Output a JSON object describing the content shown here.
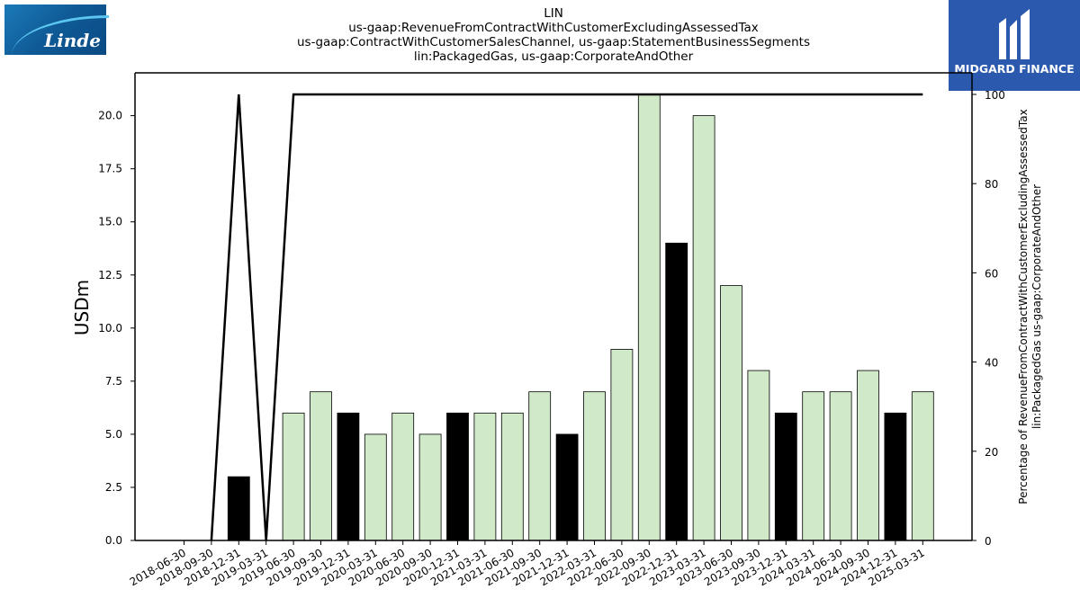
{
  "branding": {
    "left_logo_text": "Linde",
    "right_logo_text": "MIDGARD FINANCE"
  },
  "title_lines": [
    "LIN",
    "us-gaap:RevenueFromContractWithCustomerExcludingAssessedTax",
    "us-gaap:ContractWithCustomerSalesChannel, us-gaap:StatementBusinessSegments",
    "lin:PackagedGas, us-gaap:CorporateAndOther"
  ],
  "chart_data": {
    "type": "bar",
    "categories": [
      "2018-06-30",
      "2018-09-30",
      "2018-12-31",
      "2019-03-31",
      "2019-06-30",
      "2019-09-30",
      "2019-12-31",
      "2020-03-31",
      "2020-06-30",
      "2020-09-30",
      "2020-12-31",
      "2021-03-31",
      "2021-06-30",
      "2021-09-30",
      "2021-12-31",
      "2022-03-31",
      "2022-06-30",
      "2022-09-30",
      "2022-12-31",
      "2023-03-31",
      "2023-06-30",
      "2023-09-30",
      "2023-12-31",
      "2024-03-31",
      "2024-06-30",
      "2024-09-30",
      "2024-12-31",
      "2025-03-31"
    ],
    "values": [
      0,
      0,
      3,
      0,
      6,
      7,
      6,
      5,
      6,
      5,
      6,
      6,
      6,
      7,
      5,
      7,
      9,
      21,
      14,
      20,
      12,
      8,
      6,
      7,
      7,
      8,
      6,
      7
    ],
    "highlight": [
      false,
      false,
      true,
      false,
      false,
      false,
      true,
      false,
      false,
      false,
      true,
      false,
      false,
      false,
      true,
      false,
      false,
      false,
      true,
      false,
      false,
      false,
      true,
      false,
      false,
      false,
      true,
      false
    ],
    "percentage_series": [
      null,
      0,
      100,
      0,
      100,
      100,
      100,
      100,
      100,
      100,
      100,
      100,
      100,
      100,
      100,
      100,
      100,
      100,
      100,
      100,
      100,
      100,
      100,
      100,
      100,
      100,
      100,
      100
    ],
    "ylabel": "USDm",
    "y2label_lines": [
      "Percentage of RevenueFromContractWithCustomerExcludingAssessedTax",
      "lin:PackagedGas us-gaap:CorporateAndOther"
    ],
    "ylim": [
      0,
      22
    ],
    "yticks": [
      "0.0",
      "2.5",
      "5.0",
      "7.5",
      "10.0",
      "12.5",
      "15.0",
      "17.5",
      "20.0"
    ],
    "y2lim": [
      0,
      100
    ],
    "y2ticks": [
      "0",
      "20",
      "40",
      "60",
      "80",
      "100"
    ],
    "colors": {
      "bar": "#d0e9c8",
      "highlight_bar": "#000000",
      "line": "#000000"
    },
    "grid": false,
    "legend": "none"
  }
}
